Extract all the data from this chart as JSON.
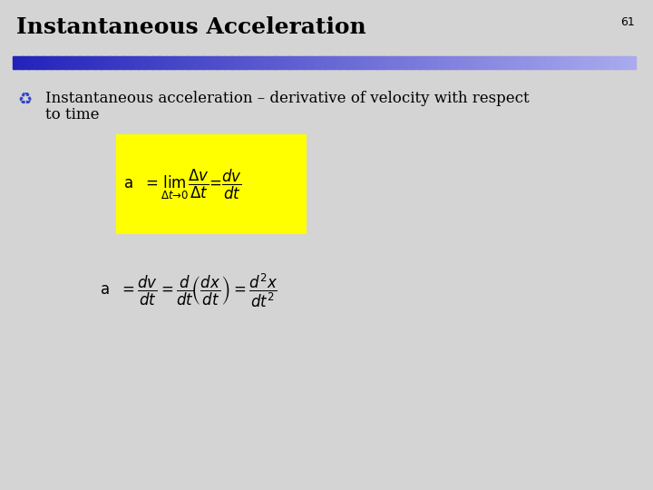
{
  "title": "Instantaneous Acceleration",
  "slide_number": "61",
  "background_color": "#d4d4d4",
  "title_color": "#000000",
  "title_fontsize": 18,
  "bar_color_left": "#2222bb",
  "bar_color_right": "#aaaaee",
  "bullet_text_line1": "Instantaneous acceleration – derivative of velocity with respect",
  "bullet_text_line2": "to time",
  "eq1_yellow_bg": "#ffff00",
  "body_fontsize": 12,
  "eq1_fontsize": 12,
  "eq2_fontsize": 12,
  "slide_num_fontsize": 9
}
